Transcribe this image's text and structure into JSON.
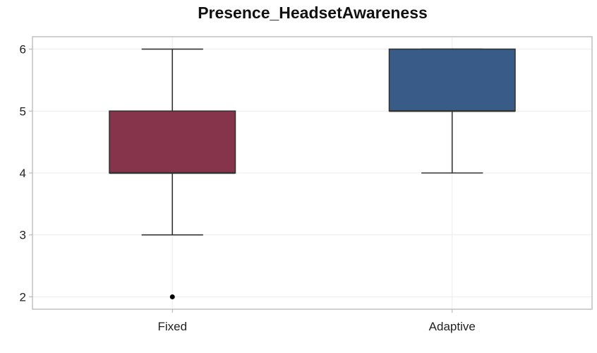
{
  "chart_data": {
    "type": "boxplot",
    "title": "Presence_HeadsetAwareness",
    "xlabel": "",
    "ylabel": "",
    "categories": [
      "Fixed",
      "Adaptive"
    ],
    "ylim": [
      1.8,
      6.2
    ],
    "yticks": [
      2,
      3,
      4,
      5,
      6
    ],
    "ytick_labels": [
      "2",
      "3",
      "4",
      "5",
      "6"
    ],
    "grid": true,
    "boxes": [
      {
        "category": "Fixed",
        "whisker_low": 3,
        "q1": 4,
        "median": 4,
        "q3": 5,
        "whisker_high": 6,
        "outliers": [
          2
        ],
        "color": "#86334c"
      },
      {
        "category": "Adaptive",
        "whisker_low": 4,
        "q1": 5,
        "median": 5,
        "q3": 6,
        "whisker_high": 6,
        "outliers": [],
        "color": "#385c87"
      }
    ]
  }
}
